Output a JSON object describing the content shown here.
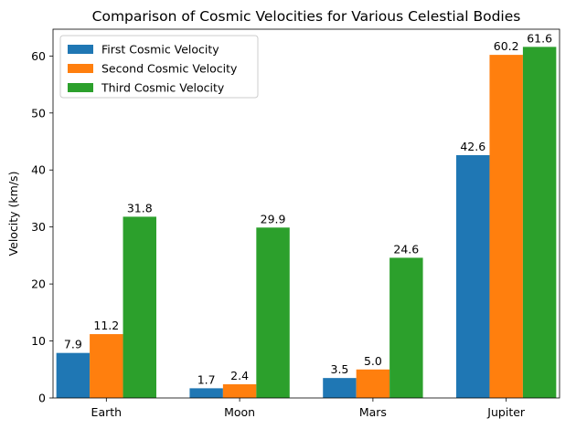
{
  "chart_data": {
    "type": "bar",
    "title": "Comparison of Cosmic Velocities for Various Celestial Bodies",
    "xlabel": "",
    "ylabel": "Velocity (km/s)",
    "categories": [
      "Earth",
      "Moon",
      "Mars",
      "Jupiter"
    ],
    "series": [
      {
        "name": "First Cosmic Velocity",
        "color": "#1f77b4",
        "values": [
          7.9,
          1.7,
          3.5,
          42.6
        ],
        "labels": [
          "7.9",
          "1.7",
          "3.5",
          "42.6"
        ]
      },
      {
        "name": "Second Cosmic Velocity",
        "color": "#ff7f0e",
        "values": [
          11.2,
          2.4,
          5.0,
          60.2
        ],
        "labels": [
          "11.2",
          "2.4",
          "5.0",
          "60.2"
        ]
      },
      {
        "name": "Third Cosmic Velocity",
        "color": "#2ca02c",
        "values": [
          31.8,
          29.9,
          24.6,
          61.6
        ],
        "labels": [
          "31.8",
          "29.9",
          "24.6",
          "61.6"
        ]
      }
    ],
    "ylim": [
      0,
      64.7
    ],
    "yticks": [
      0,
      10,
      20,
      30,
      40,
      50,
      60
    ],
    "ytick_labels": [
      "0",
      "10",
      "20",
      "30",
      "40",
      "50",
      "60"
    ],
    "grid": false,
    "legend_position": "top-left"
  }
}
